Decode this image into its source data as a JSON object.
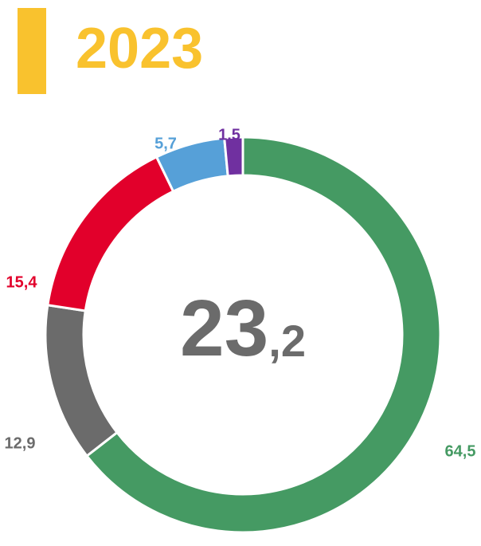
{
  "chart_data": {
    "type": "donut",
    "title": "2023",
    "center_label": "23,2",
    "categories": [
      null,
      null,
      null,
      null,
      null
    ],
    "values": [
      64.5,
      12.9,
      15.4,
      5.7,
      1.5
    ],
    "value_labels": [
      "64,5",
      "12,9",
      "15,4",
      "5,7",
      "1,5"
    ],
    "colors": [
      "#459a63",
      "#6b6b6b",
      "#e2002b",
      "#56a0d8",
      "#7030a0"
    ]
  }
}
